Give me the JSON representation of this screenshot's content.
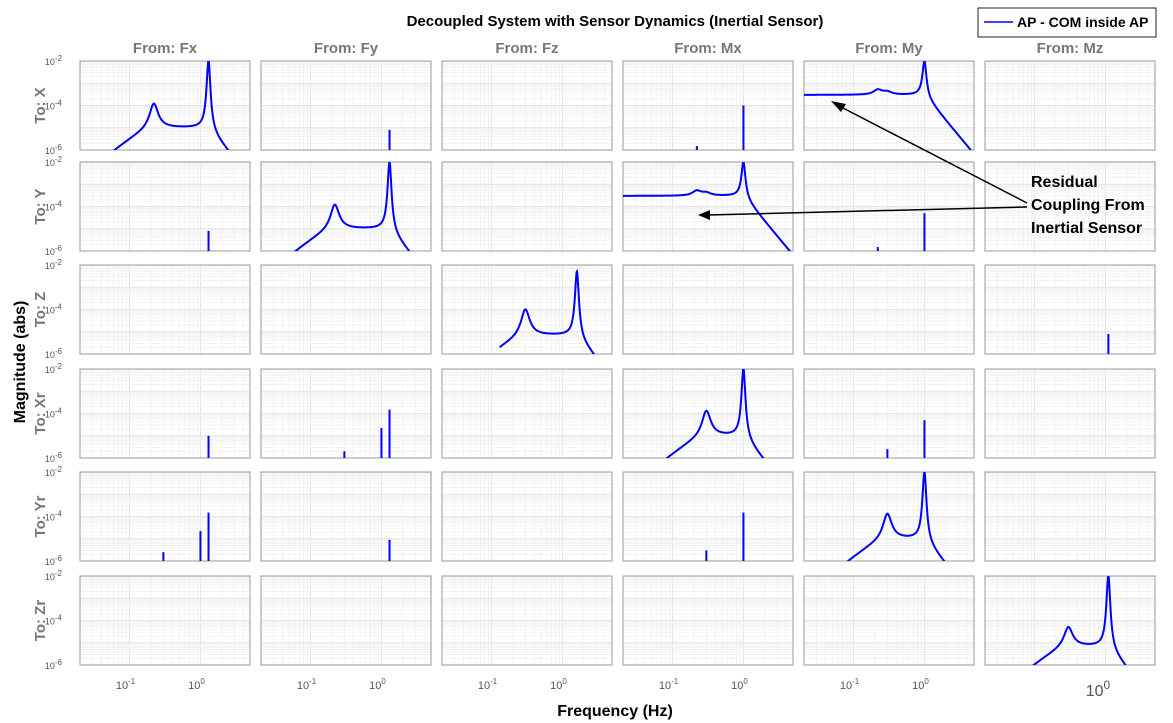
{
  "figure": {
    "title": "Decoupled System with Sensor Dynamics (Inertial Sensor)",
    "xlabel": "Frequency  (Hz)",
    "ylabel": "Magnitude (abs)",
    "legend": {
      "label": "AP - COM inside AP",
      "color": "#0000ff",
      "placement": "top-right"
    },
    "annotation": {
      "lines": [
        "Residual",
        "Coupling From",
        "Inertial Sensor"
      ]
    }
  },
  "chart_data": {
    "type": "line",
    "layout": "6x6 grid of Bode magnitude subplots",
    "x_scale": "log",
    "y_scale": "log",
    "xlim": [
      0.02,
      5
    ],
    "ylim": [
      1e-06,
      0.01
    ],
    "grid": true,
    "line_color": "#0000ff",
    "columns": [
      "From: Fx",
      "From: Fy",
      "From: Fz",
      "From: Mx",
      "From: My",
      "From: Mz"
    ],
    "rows": [
      "To: X",
      "To: Y",
      "To: Z",
      "To: Xr",
      "To: Yr",
      "To: Zr"
    ],
    "ytick_labels": [
      "10",
      "10",
      "10"
    ],
    "ytick_exponents": [
      "-2",
      "-4",
      "-6"
    ],
    "xtick_labels": [
      "10",
      "10"
    ],
    "xtick_exponents": [
      "-1",
      "0"
    ],
    "last_column_xtick": {
      "label": "10",
      "exponent": "0"
    },
    "series_name": "AP - COM inside AP",
    "cells": [
      {
        "row": 0,
        "col": 0,
        "kind": "curve",
        "base": 1e-05,
        "peaks": [
          [
            0.22,
            0.00012
          ],
          [
            1.3,
            0.01
          ]
        ],
        "span": [
          0.06,
          5
        ]
      },
      {
        "row": 0,
        "col": 1,
        "kind": "spikes",
        "spikes": [
          [
            1.3,
            8e-06
          ]
        ]
      },
      {
        "row": 0,
        "col": 3,
        "kind": "spikes",
        "spikes": [
          [
            1.0,
            0.0001
          ],
          [
            0.22,
            1.5e-06
          ]
        ]
      },
      {
        "row": 0,
        "col": 4,
        "kind": "flat-curve",
        "base": 0.0003,
        "peaks": [
          [
            0.22,
            0.0005
          ],
          [
            0.3,
            0.0004
          ],
          [
            1.0,
            0.01
          ]
        ],
        "span": [
          0.02,
          5
        ]
      },
      {
        "row": 1,
        "col": 0,
        "kind": "spikes",
        "spikes": [
          [
            1.3,
            8e-06
          ]
        ]
      },
      {
        "row": 1,
        "col": 1,
        "kind": "curve",
        "base": 1e-05,
        "peaks": [
          [
            0.22,
            0.00012
          ],
          [
            1.3,
            0.01
          ]
        ],
        "span": [
          0.06,
          5
        ]
      },
      {
        "row": 1,
        "col": 3,
        "kind": "flat-curve",
        "base": 0.0003,
        "peaks": [
          [
            0.22,
            0.0005
          ],
          [
            0.3,
            0.0004
          ],
          [
            1.0,
            0.01
          ]
        ],
        "span": [
          0.02,
          5
        ]
      },
      {
        "row": 1,
        "col": 4,
        "kind": "spikes",
        "spikes": [
          [
            1.0,
            5e-05
          ],
          [
            0.22,
            1.5e-06
          ]
        ]
      },
      {
        "row": 2,
        "col": 2,
        "kind": "curve",
        "base": 7e-06,
        "peaks": [
          [
            0.3,
            0.0001
          ],
          [
            1.6,
            0.005
          ]
        ],
        "span": [
          0.13,
          5
        ]
      },
      {
        "row": 2,
        "col": 5,
        "kind": "spikes",
        "spikes": [
          [
            1.1,
            8e-06
          ]
        ]
      },
      {
        "row": 3,
        "col": 0,
        "kind": "spikes",
        "spikes": [
          [
            1.3,
            1e-05
          ]
        ]
      },
      {
        "row": 3,
        "col": 1,
        "kind": "spikes",
        "spikes": [
          [
            0.3,
            2e-06
          ],
          [
            1.0,
            2.2e-05
          ],
          [
            1.3,
            0.00015
          ]
        ]
      },
      {
        "row": 3,
        "col": 3,
        "kind": "curve",
        "base": 1e-05,
        "peaks": [
          [
            0.3,
            0.00013
          ],
          [
            1.0,
            0.01
          ]
        ],
        "span": [
          0.07,
          5
        ]
      },
      {
        "row": 3,
        "col": 4,
        "kind": "spikes",
        "spikes": [
          [
            0.3,
            2.5e-06
          ],
          [
            1.0,
            5e-05
          ]
        ]
      },
      {
        "row": 4,
        "col": 0,
        "kind": "spikes",
        "spikes": [
          [
            0.3,
            2.5e-06
          ],
          [
            1.0,
            2.2e-05
          ],
          [
            1.3,
            0.00015
          ]
        ]
      },
      {
        "row": 4,
        "col": 1,
        "kind": "spikes",
        "spikes": [
          [
            1.3,
            9e-06
          ]
        ]
      },
      {
        "row": 4,
        "col": 3,
        "kind": "spikes",
        "spikes": [
          [
            0.3,
            3e-06
          ],
          [
            1.0,
            0.00015
          ]
        ]
      },
      {
        "row": 4,
        "col": 4,
        "kind": "curve",
        "base": 1e-05,
        "peaks": [
          [
            0.3,
            0.00013
          ],
          [
            1.0,
            0.01
          ]
        ],
        "span": [
          0.07,
          5
        ]
      },
      {
        "row": 5,
        "col": 5,
        "kind": "curve",
        "base": 7e-06,
        "peaks": [
          [
            0.3,
            5e-05
          ],
          [
            1.1,
            0.01
          ]
        ],
        "span": [
          0.08,
          5
        ]
      }
    ]
  }
}
